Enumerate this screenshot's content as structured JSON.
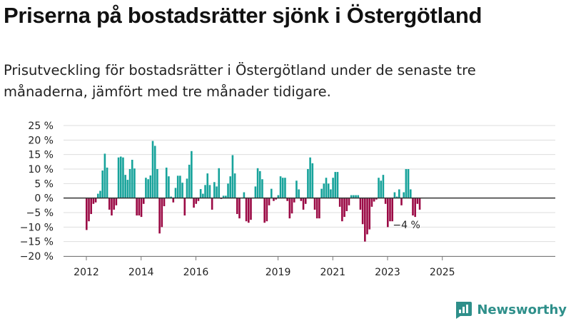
{
  "title": "Priserna på bostadsrätter sjönk i Östergötland",
  "subtitle": "Prisutveckling för bostadsrätter i Östergötland under de senaste tre månaderna, jämfört med tre månader tidigare.",
  "brand": {
    "name": "Newsworthy",
    "logo_icon": "newsworthy-logo-icon",
    "color": "#2e8f8a"
  },
  "colors": {
    "positive": "#17a39b",
    "negative": "#9b0a45",
    "grid": "#dddddd",
    "zero_line": "#333333"
  },
  "chart_data": {
    "type": "bar",
    "ylim": [
      -20,
      25
    ],
    "y_ticks": [
      25,
      20,
      15,
      10,
      5,
      0,
      -5,
      -10,
      -15,
      -20
    ],
    "y_tick_labels": [
      "25 %",
      "20 %",
      "15 %",
      "10 %",
      "5 %",
      "0 %",
      "−5 %",
      "−10 %",
      "−15 %",
      "−20 %"
    ],
    "x_ticks": [
      "2012",
      "2014",
      "2016",
      "2019",
      "2021",
      "2023",
      "2025"
    ],
    "grid": true,
    "annotation": {
      "text": "−4 %",
      "target": "last"
    },
    "series": [
      {
        "values": [
          -11,
          -8,
          -5.5,
          -2,
          -1.5,
          1.5,
          2.5,
          9.5,
          15.3,
          10.5,
          -4,
          -6,
          -4,
          -2.5,
          14,
          14.3,
          14,
          8,
          6.3,
          10,
          13.2,
          10.2,
          -6,
          -6,
          -6.5,
          -2,
          7,
          6.5,
          7.8,
          19.7,
          18,
          10,
          -12.2,
          -10,
          -2.8,
          10.5,
          7.5,
          0.5,
          -1.5,
          3.5,
          7.7,
          7.7,
          5.3,
          -6,
          6.7,
          11.5,
          16.2,
          -3.3,
          -2,
          -1,
          3.1,
          1.5,
          4.5,
          8.5,
          4.5,
          -4,
          5.5,
          4,
          10.3,
          -0.3,
          0.8,
          0.8,
          5,
          7.5,
          14.8,
          8.5,
          -5.5,
          -7,
          0,
          2,
          -8,
          -8.5,
          -7.5,
          0,
          4,
          10.3,
          9.3,
          6.5,
          -8.5,
          -8,
          -2.5,
          3.2,
          -1,
          -0.5,
          1,
          7.5,
          7,
          7,
          -1,
          -7,
          -5.3,
          -1.5,
          6,
          3,
          -1,
          -4,
          -2,
          10,
          14,
          12,
          -4,
          -7,
          -7,
          3.2,
          5,
          7,
          5,
          3,
          7,
          9,
          9,
          -3,
          -8,
          -6.5,
          -4.5,
          -2.5,
          1,
          1,
          1,
          1,
          -4,
          -9,
          -15,
          -12.5,
          -10.8,
          -3,
          -1.2,
          -0.5,
          7,
          6,
          8,
          -2,
          -10,
          -8,
          -8,
          2,
          0.5,
          3,
          -2.5,
          2,
          10,
          10,
          3,
          -6,
          -6.5,
          -2,
          -4
        ]
      }
    ]
  }
}
